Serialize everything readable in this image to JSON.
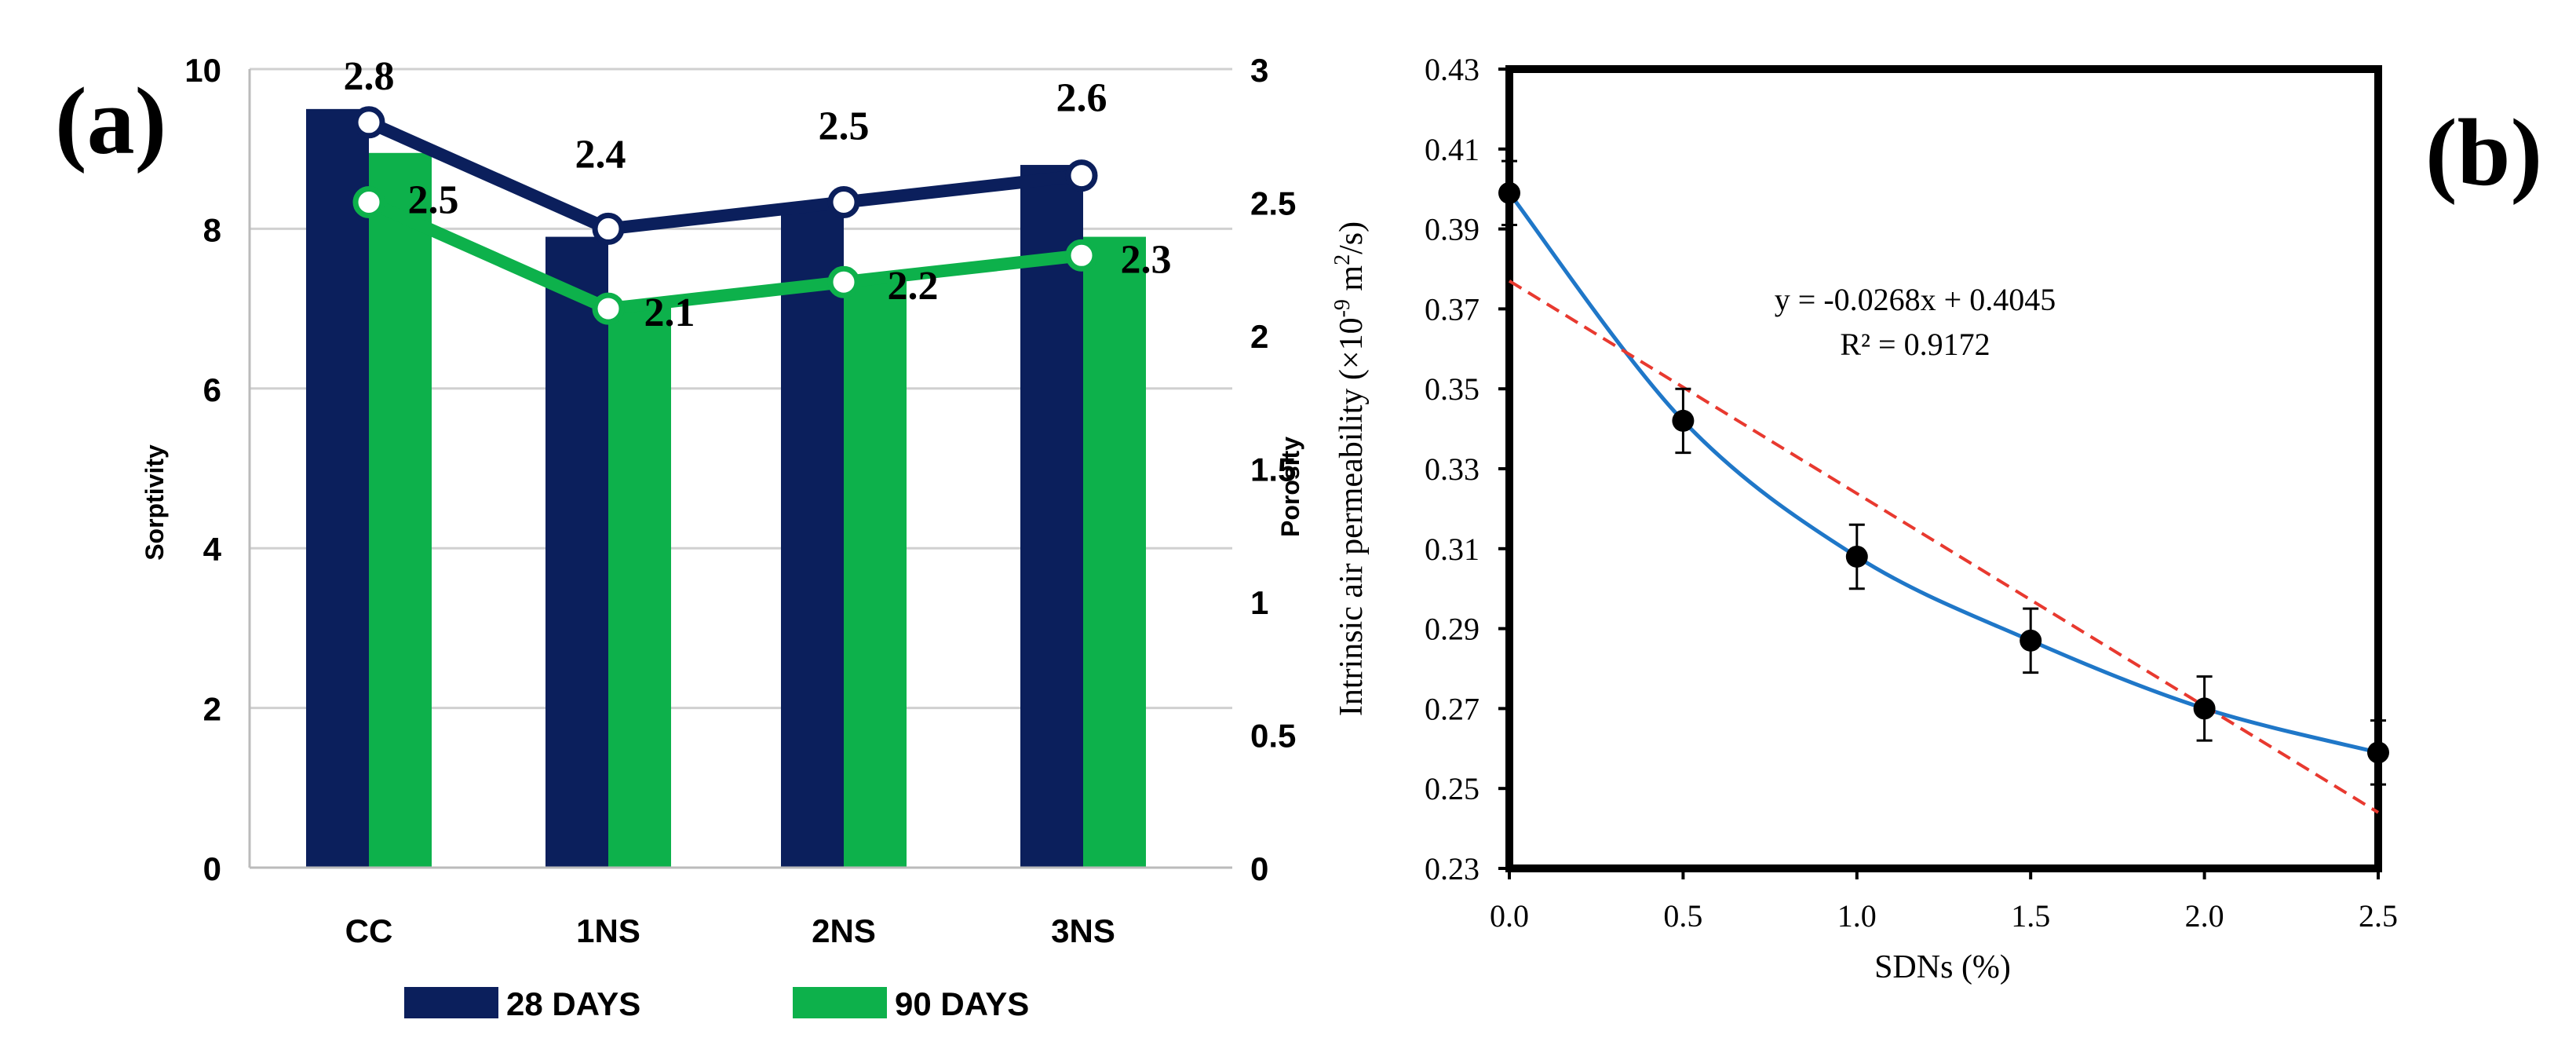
{
  "panels": {
    "a_label": "(a)",
    "b_label": "(b)"
  },
  "chart_data": [
    {
      "id": "a",
      "type": "bar",
      "title": "",
      "categories": [
        "CC",
        "1NS",
        "2NS",
        "3NS"
      ],
      "ylabel": "Sorptivity",
      "y2label": "Porosity",
      "ylim": [
        0,
        10
      ],
      "y_ticks": [
        "0",
        "2",
        "4",
        "6",
        "8",
        "10"
      ],
      "y2lim": [
        0,
        3
      ],
      "y2_ticks": [
        "0",
        "0.5",
        "1",
        "1.5",
        "2",
        "2.5",
        "3"
      ],
      "grid": true,
      "legend_position": "bottom",
      "series": [
        {
          "name": "28 DAYS",
          "kind": "bar",
          "axis": "left",
          "color": "#0b1f5c",
          "values": [
            9.5,
            7.9,
            8.3,
            8.8
          ]
        },
        {
          "name": "90 DAYS",
          "kind": "bar",
          "axis": "left",
          "color": "#0db14b",
          "values": [
            8.95,
            7.1,
            7.4,
            7.9
          ]
        },
        {
          "name": "28 DAYS",
          "kind": "line",
          "axis": "right",
          "color": "#0b1f5c",
          "values": [
            2.8,
            2.4,
            2.5,
            2.6
          ],
          "labels": [
            "2.8",
            "2.4",
            "2.5",
            "2.6"
          ]
        },
        {
          "name": "90 DAYS",
          "kind": "line",
          "axis": "right",
          "color": "#0db14b",
          "values": [
            2.5,
            2.1,
            2.2,
            2.3
          ],
          "labels": [
            "2.5",
            "2.1",
            "2.2",
            "2.3"
          ]
        }
      ]
    },
    {
      "id": "b",
      "type": "scatter",
      "title": "",
      "xlabel": "SDNs (%)",
      "ylabel": "Intrinsic air permeability (×10",
      "ylabel_sup": "-9",
      "ylabel_mid": " m",
      "ylabel_sup2": "2",
      "ylabel_end": "/s)",
      "xlim": [
        0,
        2.5
      ],
      "ylim": [
        0.23,
        0.43
      ],
      "x_ticks": [
        "0.0",
        "0.5",
        "1.0",
        "1.5",
        "2.0",
        "2.5"
      ],
      "y_ticks": [
        "0.23",
        "0.25",
        "0.27",
        "0.29",
        "0.31",
        "0.33",
        "0.35",
        "0.37",
        "0.39",
        "0.41",
        "0.43"
      ],
      "points": {
        "x": [
          0,
          0.5,
          1.0,
          1.5,
          2.0,
          2.5
        ],
        "y": [
          0.399,
          0.342,
          0.308,
          0.287,
          0.27,
          0.259
        ],
        "err": [
          0.008,
          0.008,
          0.008,
          0.008,
          0.008,
          0.008
        ]
      },
      "fit_curve": {
        "color": "#1f77c8",
        "name": "smooth fit"
      },
      "trendline": {
        "color": "#e8392f",
        "slope": -0.0268,
        "intercept": 0.4045,
        "style": "dashed"
      },
      "equation": "y = -0.0268x + 0.4045",
      "r2": "R² = 0.9172"
    }
  ]
}
